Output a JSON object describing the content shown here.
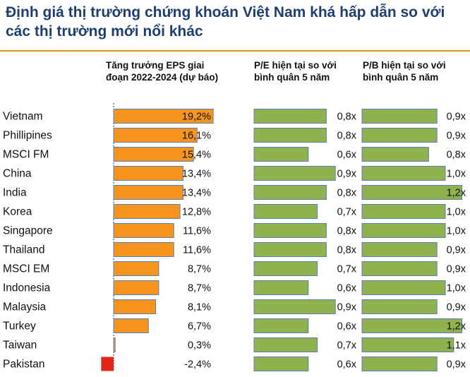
{
  "title": "Định giá thị trường chứng khoán Việt Nam khá hấp dẫn so với các thị trường mới nổi khác",
  "colors": {
    "title": "#1f3f73",
    "divider": "#e8962b",
    "eps_positive": "#f7941d",
    "eps_negative": "#e3241b",
    "valuation": "#8fb24f",
    "bar_outline": "#5b7fb8"
  },
  "chart_data": [
    {
      "type": "bar",
      "orientation": "horizontal",
      "title": "Tăng trưởng EPS giai đoạn 2022-2024 (dự báo)",
      "categories": [
        "Vietnam",
        "Phillipines",
        "MSCI FM",
        "China",
        "India",
        "Korea",
        "Singapore",
        "Thailand",
        "MSCI EM",
        "Indonesia",
        "Malaysia",
        "Turkey",
        "Taiwan",
        "Pakistan"
      ],
      "values": [
        19.2,
        16.1,
        15.4,
        13.4,
        13.4,
        12.8,
        11.6,
        11.6,
        8.7,
        8.7,
        8.1,
        6.7,
        0.3,
        -2.4
      ],
      "labels": [
        "19,2%",
        "16,1%",
        "15,4%",
        "13,4%",
        "13,4%",
        "12,8%",
        "11,6%",
        "11,6%",
        "8,7%",
        "8,7%",
        "8,1%",
        "6,7%",
        "0,3%",
        "-2,4%"
      ]
    },
    {
      "type": "bar",
      "orientation": "horizontal",
      "title": "P/E hiện tại so với bình quân 5 năm",
      "categories": [
        "Vietnam",
        "Phillipines",
        "MSCI FM",
        "China",
        "India",
        "Korea",
        "Singapore",
        "Thailand",
        "MSCI EM",
        "Indonesia",
        "Malaysia",
        "Turkey",
        "Taiwan",
        "Pakistan"
      ],
      "values": [
        0.8,
        0.8,
        0.6,
        0.9,
        0.8,
        0.7,
        0.8,
        0.8,
        0.7,
        0.6,
        0.9,
        0.6,
        0.7,
        0.6
      ],
      "labels": [
        "0,8x",
        "0,8x",
        "0,6x",
        "0,9x",
        "0,8x",
        "0,7x",
        "0,8x",
        "0,8x",
        "0,7x",
        "0,6x",
        "0,9x",
        "0,6x",
        "0,7x",
        "0,6x"
      ]
    },
    {
      "type": "bar",
      "orientation": "horizontal",
      "title": "P/B hiện tại so với bình quân 5 năm",
      "categories": [
        "Vietnam",
        "Phillipines",
        "MSCI FM",
        "China",
        "India",
        "Korea",
        "Singapore",
        "Thailand",
        "MSCI EM",
        "Indonesia",
        "Malaysia",
        "Turkey",
        "Taiwan",
        "Pakistan"
      ],
      "values": [
        0.9,
        0.9,
        0.8,
        1.0,
        1.2,
        1.0,
        1.0,
        0.9,
        0.9,
        1.0,
        0.9,
        1.2,
        1.1,
        0.9
      ],
      "labels": [
        "0,9x",
        "0,9x",
        "0,8x",
        "1,0x",
        "1,2x",
        "1,0x",
        "1,0x",
        "0,9x",
        "0,9x",
        "1,0x",
        "0,9x",
        "1,2x",
        "1,1x",
        "0,9x"
      ]
    }
  ]
}
